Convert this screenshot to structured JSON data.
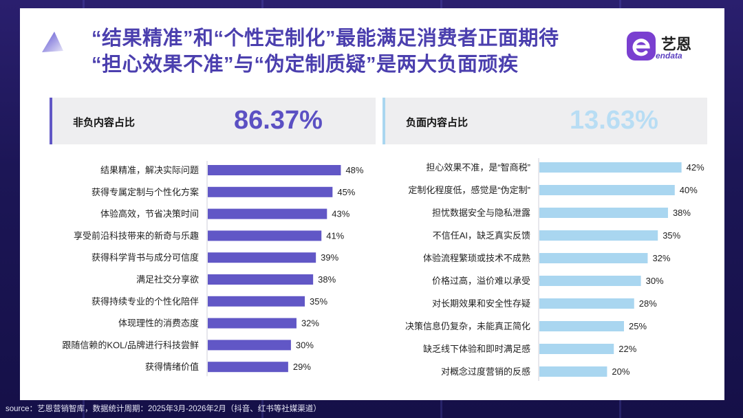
{
  "title": {
    "line1": "“结果精准”和“个性定制化”最能满足消费者正面期待",
    "line2": "“担心效果不准”与“伪定制质疑”是两大负面顽疾"
  },
  "logo": {
    "text": "艺恩",
    "sub": "endata"
  },
  "left_panel": {
    "label": "非负内容占比",
    "value": "86.37%"
  },
  "right_panel": {
    "label": "负面内容占比",
    "value": "13.63%"
  },
  "colors": {
    "positive": "#6157c6",
    "negative": "#a9d6f0",
    "title": "#4b3fae"
  },
  "chart_data": [
    {
      "type": "bar",
      "orientation": "horizontal",
      "categories": [
        "结果精准，解决实际问题",
        "获得专属定制与个性化方案",
        "体验高效，节省决策时间",
        "享受前沿科技带来的新奇与乐趣",
        "获得科学背书与成分可信度",
        "满足社交分享欲",
        "获得持续专业的个性化陪伴",
        "体现理性的消费态度",
        "跟随信赖的KOL/品牌进行科技尝鲜",
        "获得情绪价值"
      ],
      "values": [
        48,
        45,
        43,
        41,
        39,
        38,
        35,
        32,
        30,
        29
      ],
      "value_labels": [
        "48%",
        "45%",
        "43%",
        "41%",
        "39%",
        "38%",
        "35%",
        "32%",
        "30%",
        "29%"
      ],
      "color": "#6157c6"
    },
    {
      "type": "bar",
      "orientation": "horizontal",
      "categories": [
        "担心效果不准，是“智商税”",
        "定制化程度低，感觉是“伪定制”",
        "担忧数据安全与隐私泄露",
        "不信任AI，缺乏真实反馈",
        "体验流程繁琐或技术不成熟",
        "价格过高，溢价难以承受",
        "对长期效果和安全性存疑",
        "决策信息仍复杂，未能真正简化",
        "缺乏线下体验和即时满足感",
        "对概念过度营销的反感"
      ],
      "values": [
        42,
        40,
        38,
        35,
        32,
        30,
        28,
        25,
        22,
        20
      ],
      "value_labels": [
        "42%",
        "40%",
        "38%",
        "35%",
        "32%",
        "30%",
        "28%",
        "25%",
        "22%",
        "20%"
      ],
      "color": "#a9d6f0"
    }
  ],
  "footer": "source：艺恩营销智库，数据统计周期：2025年3月-2026年2月（抖音、红书等社媒渠道）"
}
